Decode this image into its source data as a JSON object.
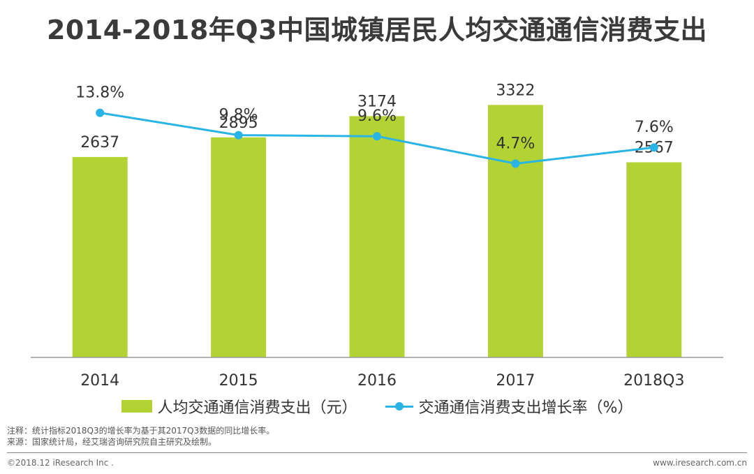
{
  "title": "2014-2018年Q3中国城镇居民人均交通通信消费支出",
  "chart_data": {
    "type": "bar",
    "categories": [
      "2014",
      "2015",
      "2016",
      "2017",
      "2018Q3"
    ],
    "series": [
      {
        "name": "人均交通通信消费支出（元）",
        "kind": "bar",
        "values": [
          2637,
          2895,
          3174,
          3322,
          2567
        ],
        "labels": [
          "2637",
          "2895",
          "3174",
          "3322",
          "2567"
        ]
      },
      {
        "name": "交通通信消费支出增长率（%）",
        "kind": "line",
        "values": [
          13.8,
          9.8,
          9.6,
          4.7,
          7.6
        ],
        "labels": [
          "13.8%",
          "9.8%",
          "9.6%",
          "4.7%",
          "7.6%"
        ]
      }
    ],
    "bar_ylim": [
      0,
      3600
    ],
    "line_ylim": [
      -30,
      19
    ],
    "colors": {
      "bar": "#b3d335",
      "line": "#2ab4e6"
    }
  },
  "legend": {
    "bar_label": "人均交通通信消费支出（元）",
    "line_label": "交通通信消费支出增长率（%）"
  },
  "notes": {
    "note": "注释：统计指标2018Q3的增长率为基于其2017Q3数据的同比增长率。",
    "source": "来源：国家统计局，经艾瑞咨询研究院自主研究及绘制。"
  },
  "footer": {
    "copyright": "©2018.12 iResearch Inc .",
    "url": "www.iresearch.com.cn"
  }
}
